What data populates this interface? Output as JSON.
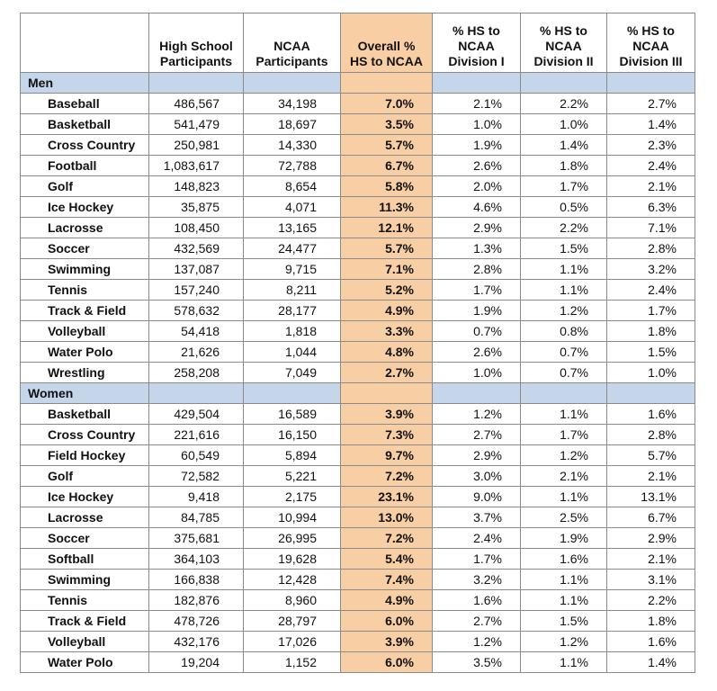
{
  "table": {
    "header": [
      [
        "High School",
        "Participants"
      ],
      [
        "NCAA",
        "Participants"
      ],
      [
        "Overall %",
        "HS to NCAA"
      ],
      [
        "% HS to",
        "NCAA",
        "Division I"
      ],
      [
        "% HS to",
        "NCAA",
        "Division II"
      ],
      [
        "% HS to",
        "NCAA",
        "Division III"
      ]
    ],
    "sections": [
      {
        "title": "Men",
        "rows": [
          [
            "Baseball",
            "486,567",
            "34,198",
            "7.0%",
            "2.1%",
            "2.2%",
            "2.7%"
          ],
          [
            "Basketball",
            "541,479",
            "18,697",
            "3.5%",
            "1.0%",
            "1.0%",
            "1.4%"
          ],
          [
            "Cross Country",
            "250,981",
            "14,330",
            "5.7%",
            "1.9%",
            "1.4%",
            "2.3%"
          ],
          [
            "Football",
            "1,083,617",
            "72,788",
            "6.7%",
            "2.6%",
            "1.8%",
            "2.4%"
          ],
          [
            "Golf",
            "148,823",
            "8,654",
            "5.8%",
            "2.0%",
            "1.7%",
            "2.1%"
          ],
          [
            "Ice Hockey",
            "35,875",
            "4,071",
            "11.3%",
            "4.6%",
            "0.5%",
            "6.3%"
          ],
          [
            "Lacrosse",
            "108,450",
            "13,165",
            "12.1%",
            "2.9%",
            "2.2%",
            "7.1%"
          ],
          [
            "Soccer",
            "432,569",
            "24,477",
            "5.7%",
            "1.3%",
            "1.5%",
            "2.8%"
          ],
          [
            "Swimming",
            "137,087",
            "9,715",
            "7.1%",
            "2.8%",
            "1.1%",
            "3.2%"
          ],
          [
            "Tennis",
            "157,240",
            "8,211",
            "5.2%",
            "1.7%",
            "1.1%",
            "2.4%"
          ],
          [
            "Track & Field",
            "578,632",
            "28,177",
            "4.9%",
            "1.9%",
            "1.2%",
            "1.7%"
          ],
          [
            "Volleyball",
            "54,418",
            "1,818",
            "3.3%",
            "0.7%",
            "0.8%",
            "1.8%"
          ],
          [
            "Water Polo",
            "21,626",
            "1,044",
            "4.8%",
            "2.6%",
            "0.7%",
            "1.5%"
          ],
          [
            "Wrestling",
            "258,208",
            "7,049",
            "2.7%",
            "1.0%",
            "0.7%",
            "1.0%"
          ]
        ]
      },
      {
        "title": "Women",
        "rows": [
          [
            "Basketball",
            "429,504",
            "16,589",
            "3.9%",
            "1.2%",
            "1.1%",
            "1.6%"
          ],
          [
            "Cross Country",
            "221,616",
            "16,150",
            "7.3%",
            "2.7%",
            "1.7%",
            "2.8%"
          ],
          [
            "Field Hockey",
            "60,549",
            "5,894",
            "9.7%",
            "2.9%",
            "1.2%",
            "5.7%"
          ],
          [
            "Golf",
            "72,582",
            "5,221",
            "7.2%",
            "3.0%",
            "2.1%",
            "2.1%"
          ],
          [
            "Ice Hockey",
            "9,418",
            "2,175",
            "23.1%",
            "9.0%",
            "1.1%",
            "13.1%"
          ],
          [
            "Lacrosse",
            "84,785",
            "10,994",
            "13.0%",
            "3.7%",
            "2.5%",
            "6.7%"
          ],
          [
            "Soccer",
            "375,681",
            "26,995",
            "7.2%",
            "2.4%",
            "1.9%",
            "2.9%"
          ],
          [
            "Softball",
            "364,103",
            "19,628",
            "5.4%",
            "1.7%",
            "1.6%",
            "2.1%"
          ],
          [
            "Swimming",
            "166,838",
            "12,428",
            "7.4%",
            "3.2%",
            "1.1%",
            "3.1%"
          ],
          [
            "Tennis",
            "182,876",
            "8,960",
            "4.9%",
            "1.6%",
            "1.1%",
            "2.2%"
          ],
          [
            "Track & Field",
            "478,726",
            "28,797",
            "6.0%",
            "2.7%",
            "1.5%",
            "1.8%"
          ],
          [
            "Volleyball",
            "432,176",
            "17,026",
            "3.9%",
            "1.2%",
            "1.2%",
            "1.6%"
          ],
          [
            "Water Polo",
            "19,204",
            "1,152",
            "6.0%",
            "3.5%",
            "1.1%",
            "1.4%"
          ]
        ]
      }
    ]
  }
}
